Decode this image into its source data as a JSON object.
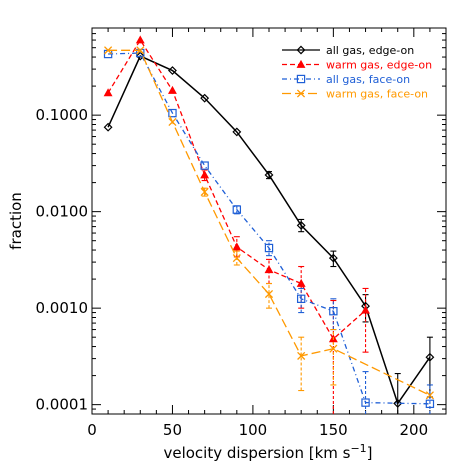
{
  "chart_data": {
    "type": "line",
    "xlabel": "velocity dispersion [km s",
    "xlabel_sup": "−1",
    "xlabel_end": "]",
    "ylabel": "fraction",
    "xlim": [
      0,
      220
    ],
    "ylim": [
      8e-05,
      0.8
    ],
    "yscale": "log",
    "grid": false,
    "legend_position": "top-right",
    "x_ticks": [
      0,
      50,
      100,
      150,
      200
    ],
    "x_tick_labels": [
      "0",
      "50",
      "100",
      "150",
      "200"
    ],
    "y_ticks": [
      0.0001,
      0.001,
      0.01,
      0.1
    ],
    "y_tick_labels": [
      "0.0001",
      "0.0010",
      "0.0100",
      "0.1000"
    ],
    "series": [
      {
        "name": "all gas, edge-on",
        "color": "#000000",
        "dash": "solid",
        "marker": "diamond",
        "points": [
          {
            "x": 10,
            "y": 0.075,
            "lo": null,
            "hi": null
          },
          {
            "x": 30,
            "y": 0.41,
            "lo": null,
            "hi": null
          },
          {
            "x": 50,
            "y": 0.29,
            "lo": null,
            "hi": null
          },
          {
            "x": 70,
            "y": 0.15,
            "lo": null,
            "hi": null
          },
          {
            "x": 90,
            "y": 0.067,
            "lo": null,
            "hi": null
          },
          {
            "x": 110,
            "y": 0.024,
            "lo": 0.022,
            "hi": 0.026
          },
          {
            "x": 130,
            "y": 0.0072,
            "lo": 0.0062,
            "hi": 0.0083
          },
          {
            "x": 150,
            "y": 0.0033,
            "lo": 0.0027,
            "hi": 0.0039
          },
          {
            "x": 170,
            "y": 0.00105,
            "lo": 0.00072,
            "hi": 0.00138
          },
          {
            "x": 190,
            "y": 0.000103,
            "lo": 3e-05,
            "hi": 0.00021
          },
          {
            "x": 210,
            "y": 0.00031,
            "lo": 0.00012,
            "hi": 0.0005
          }
        ]
      },
      {
        "name": "warm gas, edge-on",
        "color": "#ff0000",
        "dash": "dashed",
        "marker": "triangle",
        "points": [
          {
            "x": 10,
            "y": 0.17,
            "lo": null,
            "hi": null
          },
          {
            "x": 30,
            "y": 0.6,
            "lo": null,
            "hi": null
          },
          {
            "x": 50,
            "y": 0.18,
            "lo": null,
            "hi": null
          },
          {
            "x": 70,
            "y": 0.024,
            "lo": 0.021,
            "hi": 0.027
          },
          {
            "x": 90,
            "y": 0.0043,
            "lo": 0.0034,
            "hi": 0.0055
          },
          {
            "x": 110,
            "y": 0.0025,
            "lo": 0.0018,
            "hi": 0.0032
          },
          {
            "x": 130,
            "y": 0.0018,
            "lo": 0.001,
            "hi": 0.0027
          },
          {
            "x": 150,
            "y": 0.00048,
            "lo": 3e-05,
            "hi": 0.0012
          },
          {
            "x": 170,
            "y": 0.00095,
            "lo": 0.00035,
            "hi": 0.0016
          }
        ]
      },
      {
        "name": "all gas, face-on",
        "color": "#1f5fd6",
        "dash": "dashdot",
        "marker": "square",
        "points": [
          {
            "x": 10,
            "y": 0.43,
            "lo": null,
            "hi": null
          },
          {
            "x": 30,
            "y": 0.44,
            "lo": null,
            "hi": null
          },
          {
            "x": 50,
            "y": 0.105,
            "lo": null,
            "hi": null
          },
          {
            "x": 70,
            "y": 0.03,
            "lo": null,
            "hi": null
          },
          {
            "x": 90,
            "y": 0.0105,
            "lo": 0.0095,
            "hi": 0.0115
          },
          {
            "x": 110,
            "y": 0.0042,
            "lo": 0.0035,
            "hi": 0.005
          },
          {
            "x": 130,
            "y": 0.00125,
            "lo": 0.0009,
            "hi": 0.0016
          },
          {
            "x": 150,
            "y": 0.00093,
            "lo": 0.0006,
            "hi": 0.00125
          },
          {
            "x": 170,
            "y": 0.000105,
            "lo": 3e-05,
            "hi": 0.00022
          },
          {
            "x": 210,
            "y": 0.000102,
            "lo": 3e-05,
            "hi": 0.00016
          }
        ]
      },
      {
        "name": "warm gas, face-on",
        "color": "#ff9900",
        "dash": "longdash",
        "marker": "cross",
        "points": [
          {
            "x": 10,
            "y": 0.47,
            "lo": null,
            "hi": null
          },
          {
            "x": 30,
            "y": 0.47,
            "lo": null,
            "hi": null
          },
          {
            "x": 50,
            "y": 0.085,
            "lo": null,
            "hi": null
          },
          {
            "x": 70,
            "y": 0.016,
            "lo": 0.0145,
            "hi": 0.0175
          },
          {
            "x": 90,
            "y": 0.0033,
            "lo": 0.0028,
            "hi": 0.0039
          },
          {
            "x": 110,
            "y": 0.0014,
            "lo": 0.001,
            "hi": 0.0018
          },
          {
            "x": 130,
            "y": 0.00032,
            "lo": 0.00014,
            "hi": 0.0005
          },
          {
            "x": 150,
            "y": 0.00038,
            "lo": 0.00016,
            "hi": 0.0006
          },
          {
            "x": 210,
            "y": 0.000125,
            "lo": null,
            "hi": null
          }
        ]
      }
    ]
  }
}
